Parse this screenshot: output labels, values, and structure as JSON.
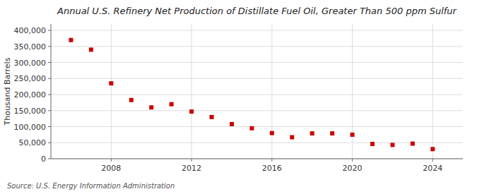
{
  "chart_data": {
    "type": "scatter",
    "title": "Annual U.S. Refinery Net Production of Distillate Fuel Oil, Greater Than 500 ppm Sulfur",
    "ylabel": "Thousand Barrels",
    "source": "Source: U.S. Energy Information Administration",
    "x": [
      2006,
      2007,
      2008,
      2009,
      2010,
      2011,
      2012,
      2013,
      2014,
      2015,
      2016,
      2017,
      2018,
      2019,
      2020,
      2021,
      2022,
      2023,
      2024
    ],
    "values": [
      370000,
      340000,
      235000,
      183000,
      160000,
      170000,
      147000,
      130000,
      108000,
      95000,
      80000,
      67000,
      79000,
      79000,
      75000,
      46000,
      43000,
      47000,
      30000
    ],
    "color": "#cc0000",
    "marker": "square",
    "xlim": [
      2005,
      2025.5
    ],
    "ylim": [
      0,
      420000
    ],
    "xticks": [
      2008,
      2012,
      2016,
      2020,
      2024
    ],
    "yticks": [
      0,
      {
        "value": 50000,
        "label": "50,000"
      },
      {
        "value": 100000,
        "label": "100,000"
      },
      {
        "value": 150000,
        "label": "150,000"
      },
      {
        "value": 200000,
        "label": "200,000"
      },
      {
        "value": 250000,
        "label": "250,000"
      },
      {
        "value": 300000,
        "label": "300,000"
      },
      {
        "value": 350000,
        "label": "350,000"
      },
      {
        "value": 400000,
        "label": "400,000"
      }
    ],
    "grid": true
  }
}
